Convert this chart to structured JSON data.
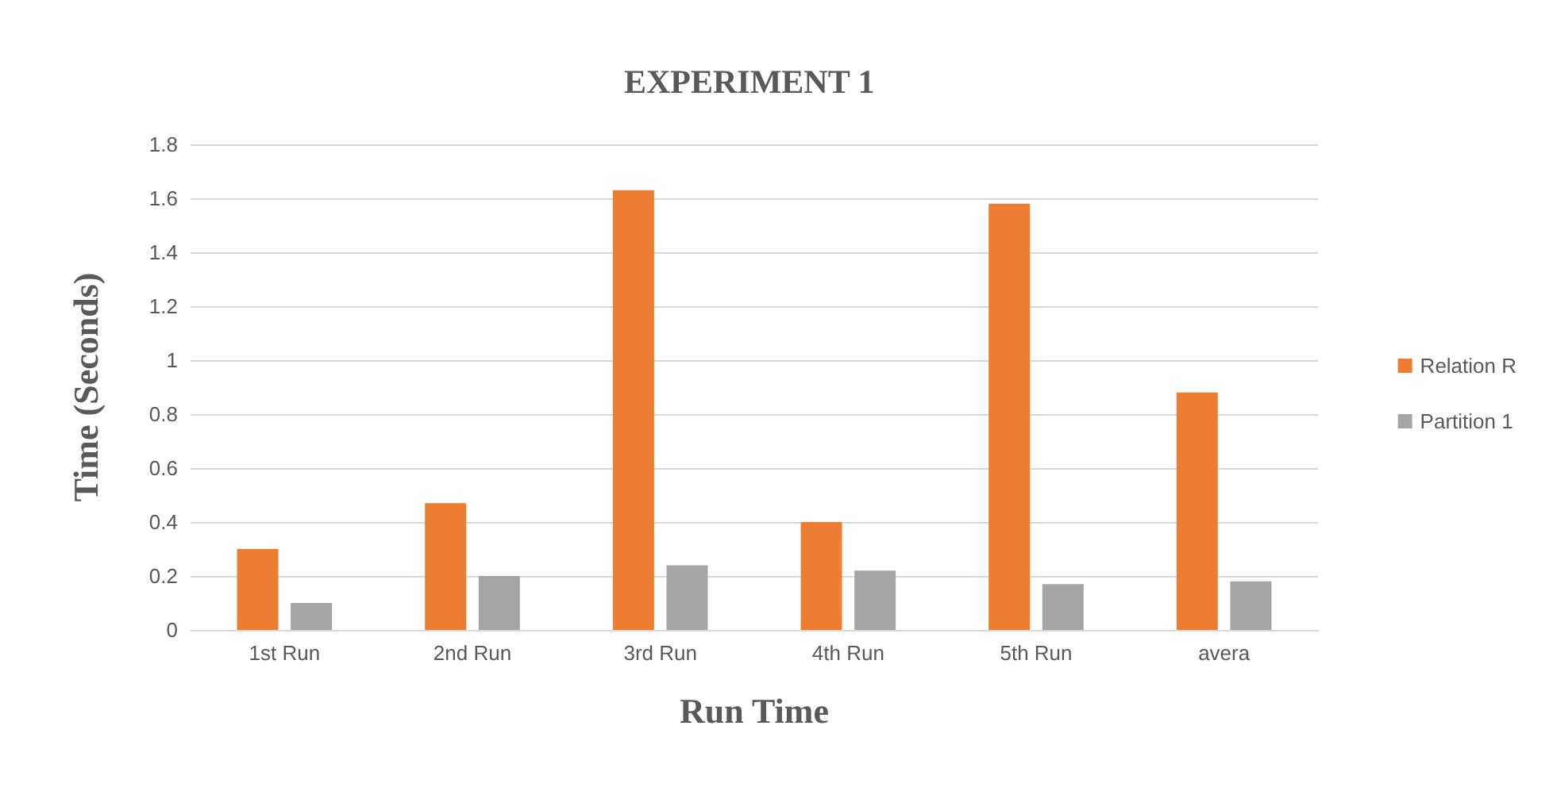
{
  "chart_data": {
    "type": "bar",
    "title": "EXPERIMENT 1",
    "xlabel": "Run Time",
    "ylabel": "Time (Seconds)",
    "categories": [
      "1st Run",
      "2nd Run",
      "3rd Run",
      "4th Run",
      "5th Run",
      "avera"
    ],
    "series": [
      {
        "name": "Relation R",
        "color": "#ed7d31",
        "values": [
          0.3,
          0.47,
          1.63,
          0.4,
          1.58,
          0.88
        ]
      },
      {
        "name": "Partition 1",
        "color": "#a5a5a5",
        "values": [
          0.1,
          0.2,
          0.24,
          0.22,
          0.17,
          0.18
        ]
      }
    ],
    "ylim": [
      0,
      1.8
    ],
    "yticks": [
      0,
      0.2,
      0.4,
      0.6,
      0.8,
      1,
      1.2,
      1.4,
      1.6,
      1.8
    ],
    "grid": "y",
    "legend": "right"
  }
}
